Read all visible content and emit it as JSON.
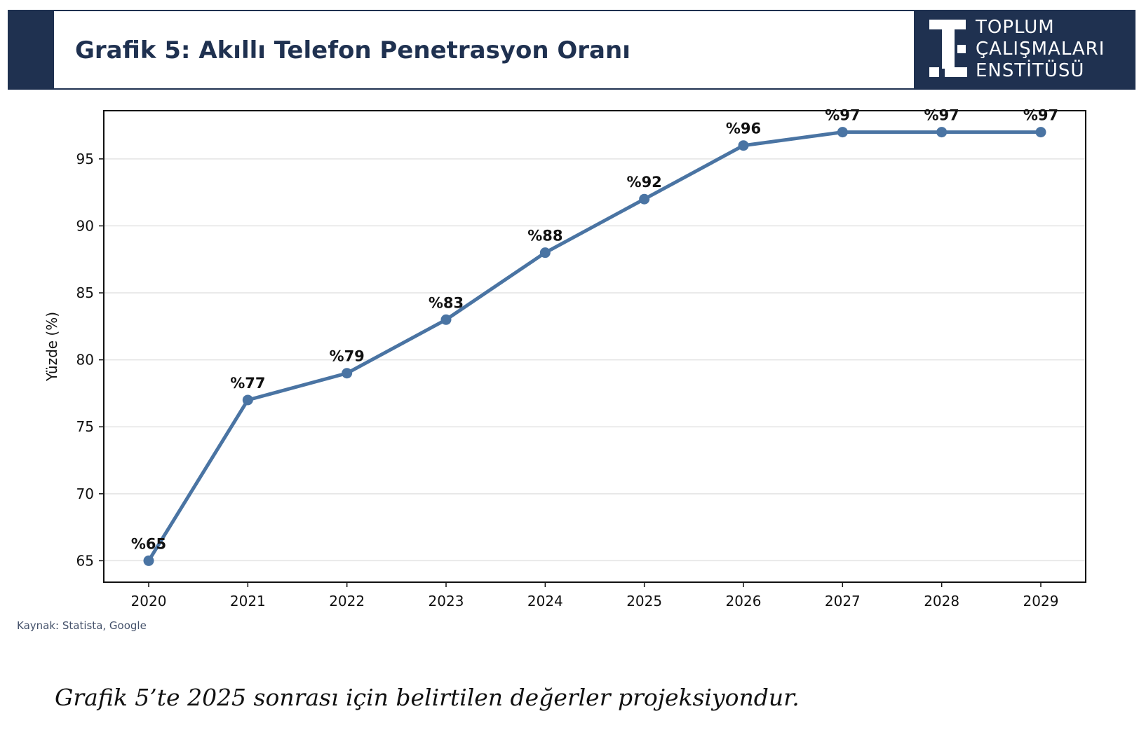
{
  "header": {
    "title": "Grafik 5: Akıllı Telefon Penetrasyon Oranı",
    "logo_lines": [
      "TOPLUM",
      "ÇALIŞMALARI",
      "ENSTİTÜSÜ"
    ]
  },
  "colors": {
    "navy": "#1f3150",
    "line": "#4a74a3",
    "grid": "#e3e3e3"
  },
  "chart_data": {
    "type": "line",
    "title": "",
    "xlabel": "",
    "ylabel": "Yüzde (%)",
    "categories": [
      "2020",
      "2021",
      "2022",
      "2023",
      "2024",
      "2025",
      "2026",
      "2027",
      "2028",
      "2029"
    ],
    "values": [
      65,
      77,
      79,
      83,
      88,
      92,
      96,
      97,
      97,
      97
    ],
    "data_labels": [
      "%65",
      "%77",
      "%79",
      "%83",
      "%88",
      "%92",
      "%96",
      "%97",
      "%97",
      "%97"
    ],
    "yticks": [
      65,
      70,
      75,
      80,
      85,
      90,
      95
    ],
    "ylim": [
      63.4,
      98.6
    ],
    "grid": "horizontal",
    "legend": "none"
  },
  "source": "Kaynak: Statista, Google",
  "footnote": "Grafik 5’te 2025 sonrası için belirtilen değerler projeksiyondur."
}
